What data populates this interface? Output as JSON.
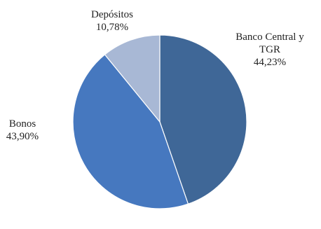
{
  "chart_data": {
    "type": "pie",
    "title": "",
    "slices": [
      {
        "label_lines": [
          "Banco Central y",
          "TGR"
        ],
        "value_text": "44,23%",
        "value": 44.23,
        "color": "#3f6797"
      },
      {
        "label_lines": [
          "Bonos"
        ],
        "value_text": "43,90%",
        "value": 43.9,
        "color": "#4678bf"
      },
      {
        "label_lines": [
          "Depósitos"
        ],
        "value_text": "10,78%",
        "value": 10.78,
        "color": "#a8b8d5"
      }
    ],
    "legend": "none",
    "start_angle": "12 o'clock",
    "direction": "clockwise"
  }
}
